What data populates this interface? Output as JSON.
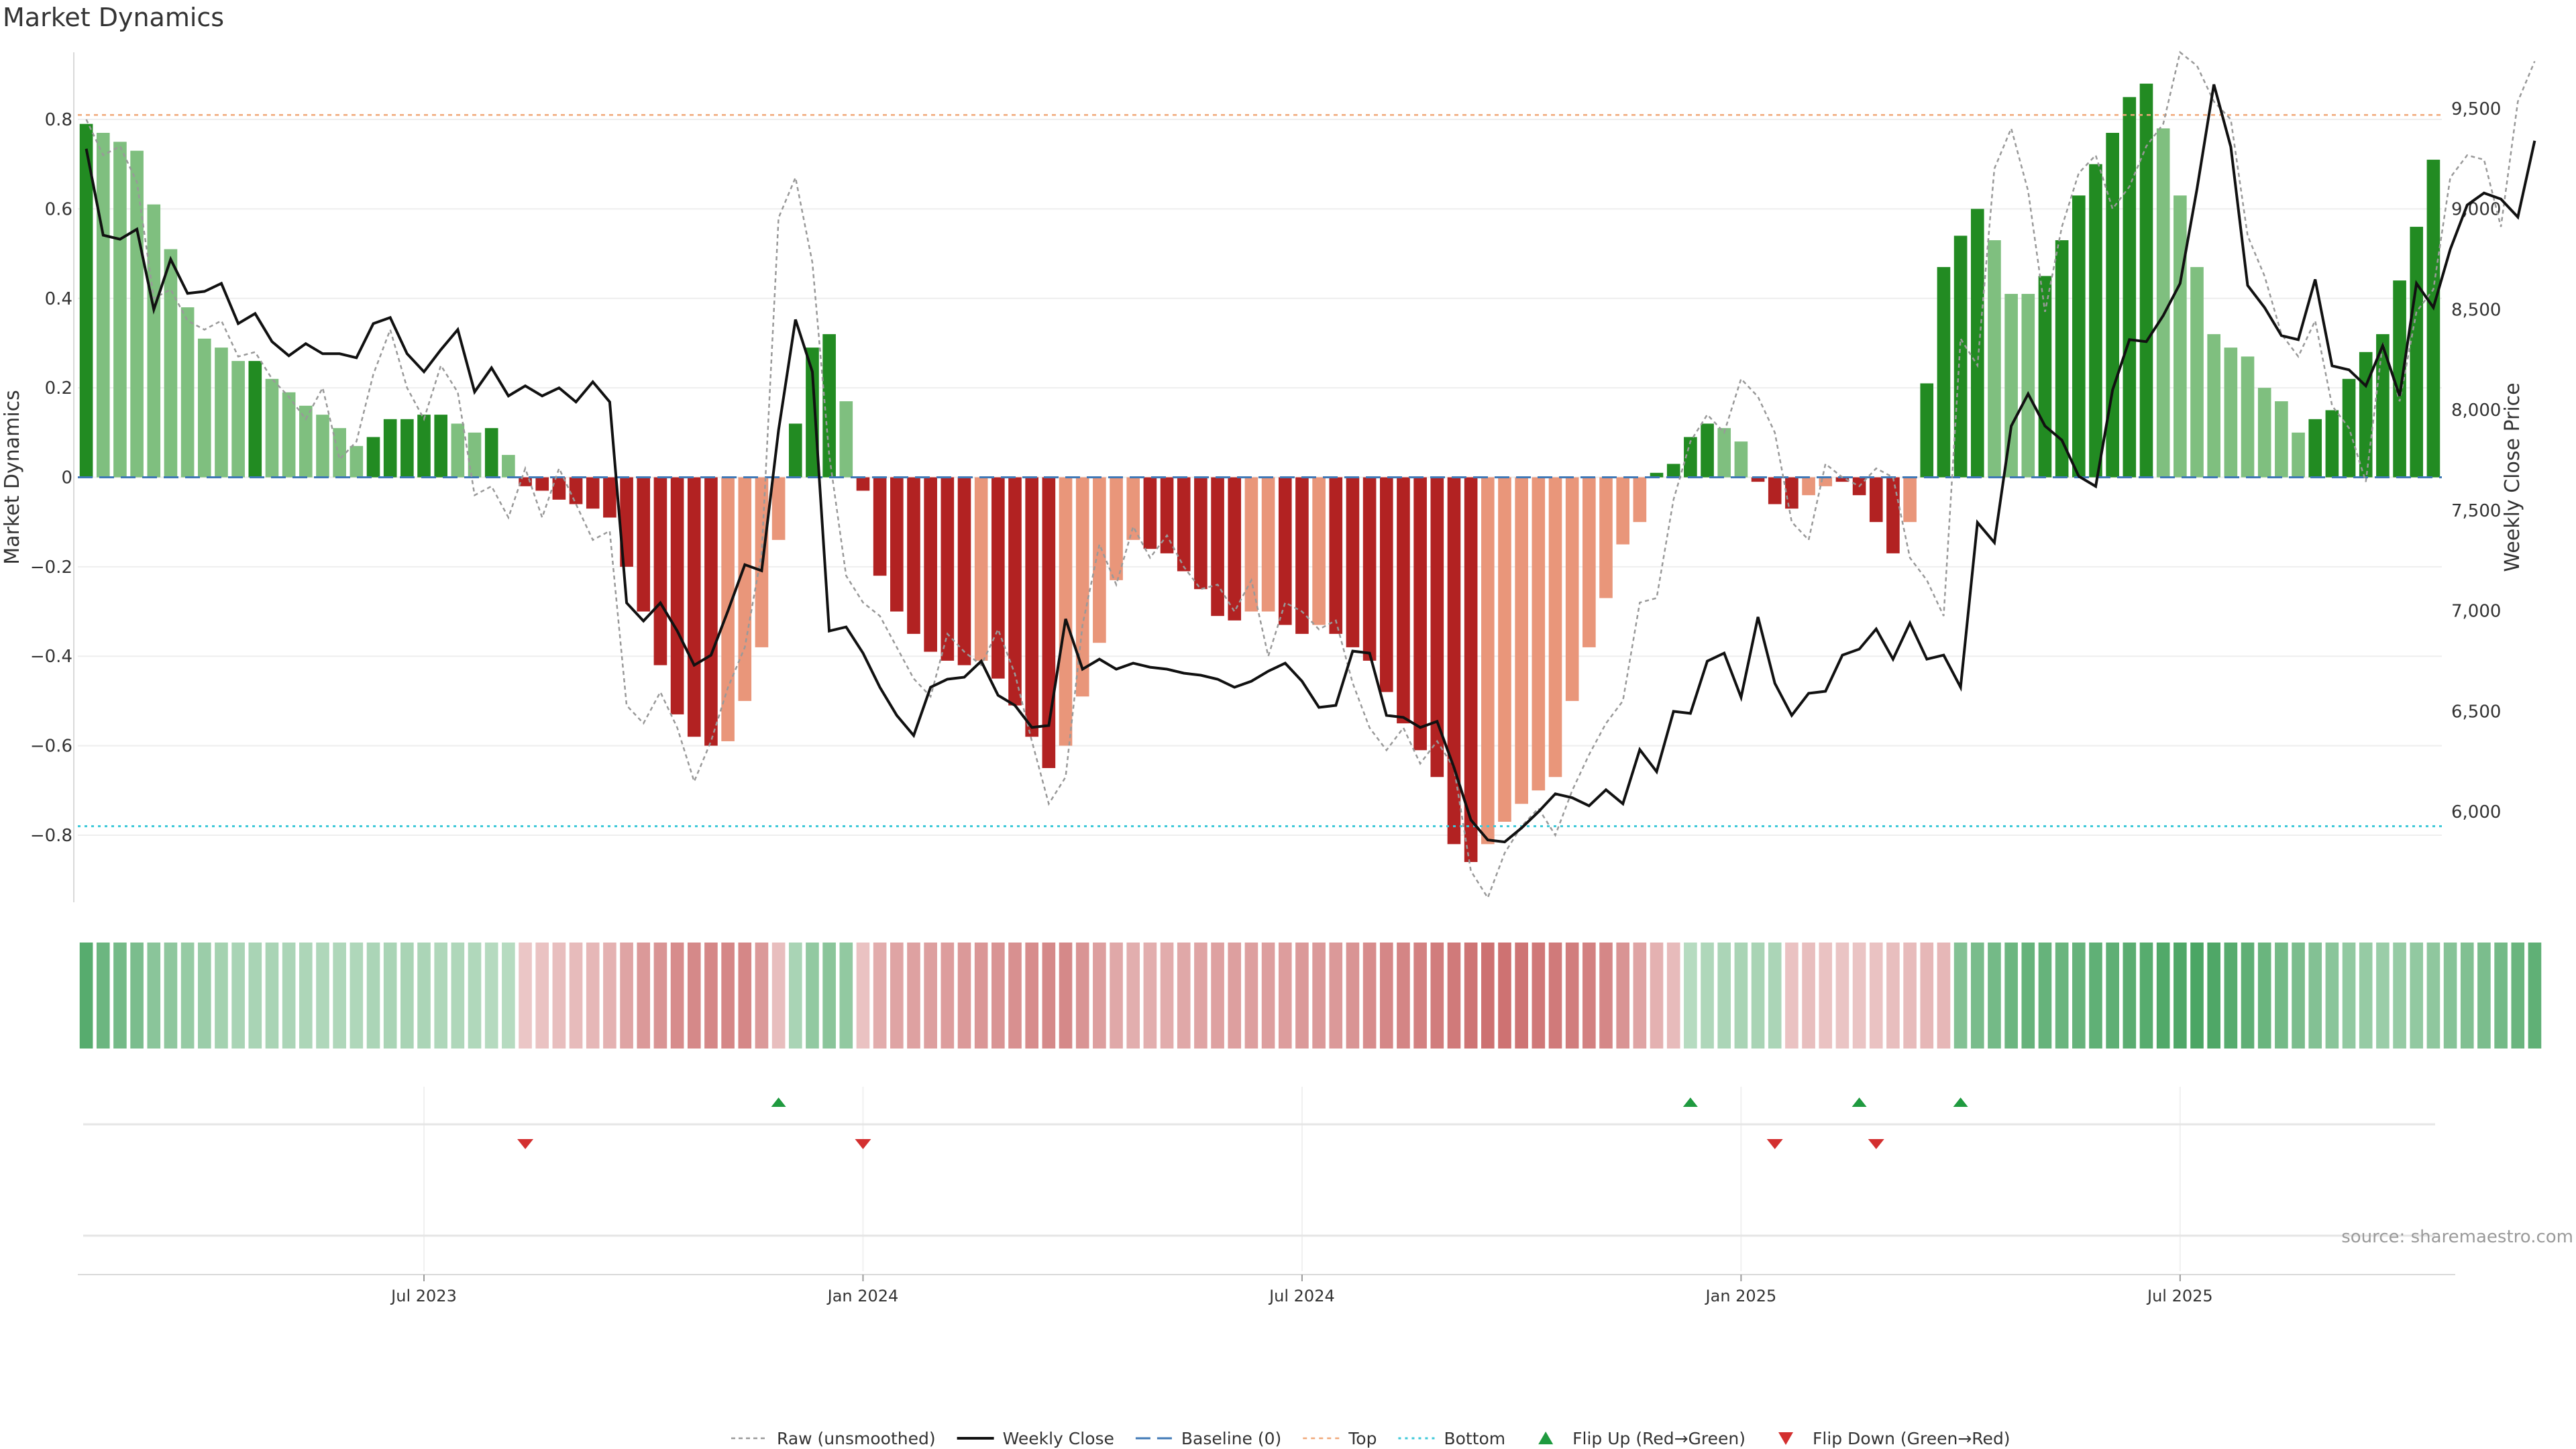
{
  "title": "Market Dynamics",
  "source": "source: sharemaestro.com",
  "chart_data": {
    "type": "bar",
    "title": "Market Dynamics",
    "ylabel": "Market Dynamics",
    "y2label": "Weekly Close Price",
    "ylim": [
      -0.95,
      0.95
    ],
    "y2lim": [
      5550,
      9780
    ],
    "y_ticks": [
      -0.8,
      -0.6,
      -0.4,
      -0.2,
      0,
      0.2,
      0.4,
      0.6,
      0.8
    ],
    "y_tick_labels": [
      "−0.8",
      "−0.6",
      "−0.4",
      "−0.2",
      "0",
      "0.2",
      "0.4",
      "0.6",
      "0.8"
    ],
    "y2_ticks": [
      6000,
      6500,
      7000,
      7500,
      8000,
      8500,
      9000,
      9500
    ],
    "y2_tick_labels": [
      "6,000",
      "6,500",
      "7,000",
      "7,500",
      "8,000",
      "8,500",
      "9,000",
      "9,500"
    ],
    "top_line": 0.81,
    "bottom_line": -0.78,
    "baseline": 0,
    "x_ticks": [
      20,
      46,
      72,
      98,
      124
    ],
    "x_tick_labels": [
      "Jul 2023",
      "Jan 2024",
      "Jul 2024",
      "Jan 2025",
      "Jul 2025"
    ],
    "bar_colors": {
      "strong_green": "#228b22",
      "weak_green": "#7fbf7f",
      "strong_red": "#b22222",
      "weak_red": "#e9967a"
    },
    "bars": [
      {
        "v": 0.79,
        "c": "strong_green"
      },
      {
        "v": 0.77,
        "c": "weak_green"
      },
      {
        "v": 0.75,
        "c": "weak_green"
      },
      {
        "v": 0.73,
        "c": "weak_green"
      },
      {
        "v": 0.61,
        "c": "weak_green"
      },
      {
        "v": 0.51,
        "c": "weak_green"
      },
      {
        "v": 0.38,
        "c": "weak_green"
      },
      {
        "v": 0.31,
        "c": "weak_green"
      },
      {
        "v": 0.29,
        "c": "weak_green"
      },
      {
        "v": 0.26,
        "c": "weak_green"
      },
      {
        "v": 0.26,
        "c": "strong_green"
      },
      {
        "v": 0.22,
        "c": "weak_green"
      },
      {
        "v": 0.19,
        "c": "weak_green"
      },
      {
        "v": 0.16,
        "c": "weak_green"
      },
      {
        "v": 0.14,
        "c": "weak_green"
      },
      {
        "v": 0.11,
        "c": "weak_green"
      },
      {
        "v": 0.07,
        "c": "weak_green"
      },
      {
        "v": 0.09,
        "c": "strong_green"
      },
      {
        "v": 0.13,
        "c": "strong_green"
      },
      {
        "v": 0.13,
        "c": "strong_green"
      },
      {
        "v": 0.14,
        "c": "strong_green"
      },
      {
        "v": 0.14,
        "c": "strong_green"
      },
      {
        "v": 0.12,
        "c": "weak_green"
      },
      {
        "v": 0.1,
        "c": "weak_green"
      },
      {
        "v": 0.11,
        "c": "strong_green"
      },
      {
        "v": 0.05,
        "c": "weak_green"
      },
      {
        "v": -0.02,
        "c": "strong_red"
      },
      {
        "v": -0.03,
        "c": "strong_red"
      },
      {
        "v": -0.05,
        "c": "strong_red"
      },
      {
        "v": -0.06,
        "c": "strong_red"
      },
      {
        "v": -0.07,
        "c": "strong_red"
      },
      {
        "v": -0.09,
        "c": "strong_red"
      },
      {
        "v": -0.2,
        "c": "strong_red"
      },
      {
        "v": -0.3,
        "c": "strong_red"
      },
      {
        "v": -0.42,
        "c": "strong_red"
      },
      {
        "v": -0.53,
        "c": "strong_red"
      },
      {
        "v": -0.58,
        "c": "strong_red"
      },
      {
        "v": -0.6,
        "c": "strong_red"
      },
      {
        "v": -0.59,
        "c": "weak_red"
      },
      {
        "v": -0.5,
        "c": "weak_red"
      },
      {
        "v": -0.38,
        "c": "weak_red"
      },
      {
        "v": -0.14,
        "c": "weak_red"
      },
      {
        "v": 0.12,
        "c": "strong_green"
      },
      {
        "v": 0.29,
        "c": "strong_green"
      },
      {
        "v": 0.32,
        "c": "strong_green"
      },
      {
        "v": 0.17,
        "c": "weak_green"
      },
      {
        "v": -0.03,
        "c": "strong_red"
      },
      {
        "v": -0.22,
        "c": "strong_red"
      },
      {
        "v": -0.3,
        "c": "strong_red"
      },
      {
        "v": -0.35,
        "c": "strong_red"
      },
      {
        "v": -0.39,
        "c": "strong_red"
      },
      {
        "v": -0.41,
        "c": "strong_red"
      },
      {
        "v": -0.42,
        "c": "strong_red"
      },
      {
        "v": -0.41,
        "c": "weak_red"
      },
      {
        "v": -0.45,
        "c": "strong_red"
      },
      {
        "v": -0.51,
        "c": "strong_red"
      },
      {
        "v": -0.58,
        "c": "strong_red"
      },
      {
        "v": -0.65,
        "c": "strong_red"
      },
      {
        "v": -0.6,
        "c": "weak_red"
      },
      {
        "v": -0.49,
        "c": "weak_red"
      },
      {
        "v": -0.37,
        "c": "weak_red"
      },
      {
        "v": -0.23,
        "c": "weak_red"
      },
      {
        "v": -0.14,
        "c": "weak_red"
      },
      {
        "v": -0.16,
        "c": "strong_red"
      },
      {
        "v": -0.17,
        "c": "strong_red"
      },
      {
        "v": -0.21,
        "c": "strong_red"
      },
      {
        "v": -0.25,
        "c": "strong_red"
      },
      {
        "v": -0.31,
        "c": "strong_red"
      },
      {
        "v": -0.32,
        "c": "strong_red"
      },
      {
        "v": -0.3,
        "c": "weak_red"
      },
      {
        "v": -0.3,
        "c": "weak_red"
      },
      {
        "v": -0.33,
        "c": "strong_red"
      },
      {
        "v": -0.35,
        "c": "strong_red"
      },
      {
        "v": -0.33,
        "c": "weak_red"
      },
      {
        "v": -0.35,
        "c": "strong_red"
      },
      {
        "v": -0.38,
        "c": "strong_red"
      },
      {
        "v": -0.41,
        "c": "strong_red"
      },
      {
        "v": -0.48,
        "c": "strong_red"
      },
      {
        "v": -0.55,
        "c": "strong_red"
      },
      {
        "v": -0.61,
        "c": "strong_red"
      },
      {
        "v": -0.67,
        "c": "strong_red"
      },
      {
        "v": -0.82,
        "c": "strong_red"
      },
      {
        "v": -0.86,
        "c": "strong_red"
      },
      {
        "v": -0.82,
        "c": "weak_red"
      },
      {
        "v": -0.77,
        "c": "weak_red"
      },
      {
        "v": -0.73,
        "c": "weak_red"
      },
      {
        "v": -0.7,
        "c": "weak_red"
      },
      {
        "v": -0.67,
        "c": "weak_red"
      },
      {
        "v": -0.5,
        "c": "weak_red"
      },
      {
        "v": -0.38,
        "c": "weak_red"
      },
      {
        "v": -0.27,
        "c": "weak_red"
      },
      {
        "v": -0.15,
        "c": "weak_red"
      },
      {
        "v": -0.1,
        "c": "weak_red"
      },
      {
        "v": 0.01,
        "c": "strong_green"
      },
      {
        "v": 0.03,
        "c": "strong_green"
      },
      {
        "v": 0.09,
        "c": "strong_green"
      },
      {
        "v": 0.12,
        "c": "strong_green"
      },
      {
        "v": 0.11,
        "c": "weak_green"
      },
      {
        "v": 0.08,
        "c": "weak_green"
      },
      {
        "v": -0.01,
        "c": "strong_red"
      },
      {
        "v": -0.06,
        "c": "strong_red"
      },
      {
        "v": -0.07,
        "c": "strong_red"
      },
      {
        "v": -0.04,
        "c": "weak_red"
      },
      {
        "v": -0.02,
        "c": "weak_red"
      },
      {
        "v": -0.01,
        "c": "strong_red"
      },
      {
        "v": -0.04,
        "c": "strong_red"
      },
      {
        "v": -0.1,
        "c": "strong_red"
      },
      {
        "v": -0.17,
        "c": "strong_red"
      },
      {
        "v": -0.1,
        "c": "weak_red"
      },
      {
        "v": 0.21,
        "c": "strong_green"
      },
      {
        "v": 0.47,
        "c": "strong_green"
      },
      {
        "v": 0.54,
        "c": "strong_green"
      },
      {
        "v": 0.6,
        "c": "strong_green"
      },
      {
        "v": 0.53,
        "c": "weak_green"
      },
      {
        "v": 0.41,
        "c": "weak_green"
      },
      {
        "v": 0.41,
        "c": "weak_green"
      },
      {
        "v": 0.45,
        "c": "strong_green"
      },
      {
        "v": 0.53,
        "c": "strong_green"
      },
      {
        "v": 0.63,
        "c": "strong_green"
      },
      {
        "v": 0.7,
        "c": "strong_green"
      },
      {
        "v": 0.77,
        "c": "strong_green"
      },
      {
        "v": 0.85,
        "c": "strong_green"
      },
      {
        "v": 0.88,
        "c": "strong_green"
      },
      {
        "v": 0.78,
        "c": "weak_green"
      },
      {
        "v": 0.63,
        "c": "weak_green"
      },
      {
        "v": 0.47,
        "c": "weak_green"
      },
      {
        "v": 0.32,
        "c": "weak_green"
      },
      {
        "v": 0.29,
        "c": "weak_green"
      },
      {
        "v": 0.27,
        "c": "weak_green"
      },
      {
        "v": 0.2,
        "c": "weak_green"
      },
      {
        "v": 0.17,
        "c": "weak_green"
      },
      {
        "v": 0.1,
        "c": "weak_green"
      },
      {
        "v": 0.13,
        "c": "strong_green"
      },
      {
        "v": 0.15,
        "c": "strong_green"
      },
      {
        "v": 0.22,
        "c": "strong_green"
      },
      {
        "v": 0.28,
        "c": "strong_green"
      },
      {
        "v": 0.32,
        "c": "strong_green"
      },
      {
        "v": 0.44,
        "c": "strong_green"
      },
      {
        "v": 0.56,
        "c": "strong_green"
      },
      {
        "v": 0.71,
        "c": "strong_green"
      }
    ],
    "weekly_close": [
      9300,
      8870,
      8850,
      8900,
      8500,
      8750,
      8580,
      8590,
      8630,
      8430,
      8480,
      8340,
      8270,
      8330,
      8280,
      8280,
      8260,
      8430,
      8460,
      8280,
      8190,
      8300,
      8400,
      8090,
      8210,
      8070,
      8120,
      8070,
      8110,
      8040,
      8140,
      8040,
      7040,
      6950,
      7040,
      6900,
      6730,
      6780,
      7000,
      7230,
      7200,
      7900,
      8450,
      8190,
      6900,
      6920,
      6790,
      6620,
      6480,
      6380,
      6620,
      6660,
      6670,
      6750,
      6580,
      6530,
      6420,
      6430,
      6960,
      6710,
      6760,
      6710,
      6740,
      6720,
      6710,
      6690,
      6680,
      6660,
      6620,
      6650,
      6700,
      6740,
      6650,
      6520,
      6530,
      6800,
      6790,
      6480,
      6470,
      6420,
      6450,
      6220,
      5960,
      5860,
      5850,
      5920,
      6000,
      6090,
      6070,
      6030,
      6110,
      6040,
      6310,
      6200,
      6500,
      6490,
      6750,
      6790,
      6570,
      6970,
      6640,
      6480,
      6590,
      6600,
      6780,
      6810,
      6910,
      6760,
      6940,
      6760,
      6780,
      6620,
      7440,
      7340,
      7920,
      8080,
      7920,
      7850,
      7670,
      7620,
      8100,
      8350,
      8340,
      8470,
      8630,
      9100,
      9620,
      9310,
      8620,
      8510,
      8370,
      8350,
      8650,
      8220,
      8200,
      8120,
      8320,
      8070,
      8630,
      8510,
      8800,
      9020,
      9080,
      9050,
      8960,
      9340
    ],
    "raw": [
      0.8,
      0.72,
      0.74,
      0.66,
      0.4,
      0.42,
      0.35,
      0.33,
      0.35,
      0.27,
      0.28,
      0.22,
      0.18,
      0.13,
      0.2,
      0.04,
      0.08,
      0.23,
      0.33,
      0.2,
      0.13,
      0.25,
      0.19,
      -0.04,
      -0.02,
      -0.09,
      0.02,
      -0.09,
      0.02,
      -0.06,
      -0.14,
      -0.12,
      -0.51,
      -0.55,
      -0.48,
      -0.56,
      -0.68,
      -0.59,
      -0.47,
      -0.38,
      -0.17,
      0.58,
      0.67,
      0.48,
      0.05,
      -0.22,
      -0.28,
      -0.31,
      -0.38,
      -0.45,
      -0.49,
      -0.35,
      -0.39,
      -0.42,
      -0.34,
      -0.44,
      -0.59,
      -0.73,
      -0.67,
      -0.33,
      -0.15,
      -0.24,
      -0.11,
      -0.18,
      -0.13,
      -0.2,
      -0.25,
      -0.24,
      -0.3,
      -0.23,
      -0.4,
      -0.28,
      -0.3,
      -0.34,
      -0.32,
      -0.46,
      -0.56,
      -0.61,
      -0.56,
      -0.64,
      -0.59,
      -0.65,
      -0.88,
      -0.94,
      -0.84,
      -0.78,
      -0.74,
      -0.8,
      -0.7,
      -0.62,
      -0.55,
      -0.5,
      -0.28,
      -0.27,
      -0.05,
      0.08,
      0.14,
      0.1,
      0.22,
      0.18,
      0.1,
      -0.1,
      -0.14,
      0.03,
      0.0,
      -0.02,
      0.02,
      0.0,
      -0.18,
      -0.23,
      -0.31,
      0.31,
      0.25,
      0.69,
      0.78,
      0.64,
      0.37,
      0.56,
      0.68,
      0.72,
      0.6,
      0.65,
      0.74,
      0.79,
      0.95,
      0.92,
      0.84,
      0.8,
      0.54,
      0.45,
      0.32,
      0.27,
      0.35,
      0.16,
      0.11,
      -0.01,
      0.3,
      0.17,
      0.37,
      0.42,
      0.67,
      0.72,
      0.71,
      0.56,
      0.84,
      0.93
    ],
    "regime_strip": {
      "values": [
        0.85,
        0.7,
        0.65,
        0.6,
        0.5,
        0.48,
        0.42,
        0.38,
        0.33,
        0.3,
        0.3,
        0.3,
        0.28,
        0.27,
        0.26,
        0.25,
        0.26,
        0.28,
        0.3,
        0.3,
        0.28,
        0.26,
        0.26,
        0.24,
        0.22,
        0.2,
        -0.18,
        -0.22,
        -0.25,
        -0.28,
        -0.3,
        -0.35,
        -0.45,
        -0.55,
        -0.6,
        -0.65,
        -0.68,
        -0.7,
        -0.7,
        -0.7,
        -0.55,
        -0.25,
        0.3,
        0.45,
        0.5,
        0.45,
        -0.22,
        -0.4,
        -0.45,
        -0.48,
        -0.5,
        -0.52,
        -0.55,
        -0.58,
        -0.6,
        -0.62,
        -0.65,
        -0.68,
        -0.68,
        -0.6,
        -0.5,
        -0.42,
        -0.38,
        -0.38,
        -0.4,
        -0.42,
        -0.45,
        -0.48,
        -0.5,
        -0.5,
        -0.5,
        -0.52,
        -0.55,
        -0.55,
        -0.55,
        -0.6,
        -0.65,
        -0.7,
        -0.72,
        -0.75,
        -0.78,
        -0.8,
        -0.85,
        -0.88,
        -0.86,
        -0.85,
        -0.82,
        -0.8,
        -0.78,
        -0.75,
        -0.7,
        -0.6,
        -0.45,
        -0.35,
        -0.28,
        0.2,
        0.25,
        0.28,
        0.3,
        0.3,
        0.28,
        -0.22,
        -0.25,
        -0.22,
        -0.2,
        -0.2,
        -0.22,
        -0.25,
        -0.28,
        -0.3,
        -0.3,
        0.55,
        0.62,
        0.66,
        0.7,
        0.74,
        0.74,
        0.72,
        0.74,
        0.78,
        0.8,
        0.82,
        0.85,
        0.88,
        0.9,
        0.92,
        0.9,
        0.85,
        0.8,
        0.72,
        0.65,
        0.6,
        0.55,
        0.5,
        0.45,
        0.42,
        0.4,
        0.42,
        0.45,
        0.48,
        0.52,
        0.56,
        0.6,
        0.66,
        0.72,
        0.78
      ]
    },
    "flip_up_weeks": [
      41,
      95,
      105,
      111
    ],
    "flip_down_weeks": [
      26,
      46,
      100,
      106
    ],
    "legend": [
      {
        "label": "Raw (unsmoothed)",
        "kind": "raw"
      },
      {
        "label": "Weekly Close",
        "kind": "close"
      },
      {
        "label": "Baseline (0)",
        "kind": "baseline"
      },
      {
        "label": "Top",
        "kind": "top"
      },
      {
        "label": "Bottom",
        "kind": "bottom"
      },
      {
        "label": "Flip Up (Red→Green)",
        "kind": "flipup"
      },
      {
        "label": "Flip Down (Green→Red)",
        "kind": "flipdown"
      }
    ]
  }
}
